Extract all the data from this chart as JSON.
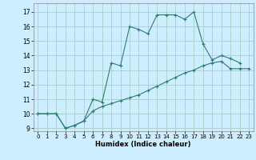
{
  "xlabel": "Humidex (Indice chaleur)",
  "bg_color": "#cceeff",
  "line_color": "#2d7d6e",
  "grid_color": "#aacccc",
  "xlim": [
    -0.5,
    23.5
  ],
  "ylim": [
    8.8,
    17.6
  ],
  "xticks": [
    0,
    1,
    2,
    3,
    4,
    5,
    6,
    7,
    8,
    9,
    10,
    11,
    12,
    13,
    14,
    15,
    16,
    17,
    18,
    19,
    20,
    21,
    22,
    23
  ],
  "yticks": [
    9,
    10,
    11,
    12,
    13,
    14,
    15,
    16,
    17
  ],
  "curve1_x": [
    0,
    1,
    2,
    3,
    4,
    5,
    6,
    7,
    8,
    9,
    10,
    11,
    12,
    13,
    14,
    15,
    16,
    17,
    18,
    19,
    20,
    21,
    22
  ],
  "curve1_y": [
    10.0,
    10.0,
    10.0,
    9.0,
    9.2,
    9.5,
    11.0,
    10.8,
    13.5,
    13.3,
    16.0,
    15.8,
    15.5,
    16.8,
    16.8,
    16.8,
    16.5,
    17.0,
    14.8,
    13.7,
    14.0,
    13.8,
    13.5
  ],
  "curve2_x": [
    0,
    1,
    2,
    3,
    4,
    5,
    6,
    7,
    8,
    9,
    10,
    11,
    12,
    13,
    14,
    15,
    16,
    17,
    18,
    19,
    20,
    21,
    22,
    23
  ],
  "curve2_y": [
    10.0,
    10.0,
    10.0,
    9.0,
    9.2,
    9.5,
    10.2,
    10.5,
    10.7,
    10.9,
    11.1,
    11.3,
    11.6,
    11.9,
    12.2,
    12.5,
    12.8,
    13.0,
    13.3,
    13.5,
    13.6,
    13.1,
    13.1,
    13.1
  ]
}
